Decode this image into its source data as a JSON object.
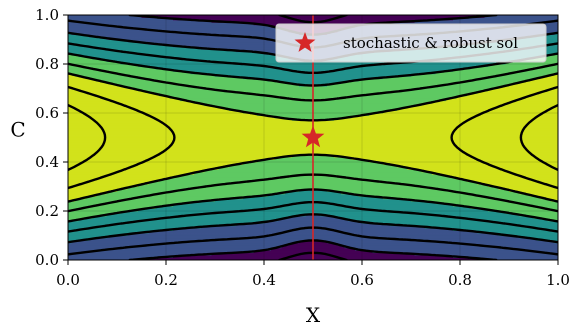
{
  "chart_data": {
    "type": "contour",
    "title": "",
    "xlabel": "X",
    "ylabel": "C",
    "xlim": [
      0.0,
      1.0
    ],
    "ylim": [
      0.0,
      1.0
    ],
    "xticks": [
      "0.0",
      "0.2",
      "0.4",
      "0.6",
      "0.8",
      "1.0"
    ],
    "yticks": [
      "0.0",
      "0.2",
      "0.4",
      "0.6",
      "0.8",
      "1.0"
    ],
    "grid": true,
    "colormap": "viridis",
    "fill_colors": [
      "#440154",
      "#3b528b",
      "#21918c",
      "#5ec962",
      "#d2e21b"
    ],
    "contour_line_color": "#000000",
    "vertical_line": {
      "x": 0.5,
      "color": "#d62728"
    },
    "marker": {
      "x": 0.5,
      "y": 0.5,
      "shape": "star",
      "color": "#d62728",
      "label": "stochastic & robust sol"
    },
    "legend": {
      "position": "top-right",
      "entries": [
        "stochastic & robust sol"
      ]
    }
  }
}
